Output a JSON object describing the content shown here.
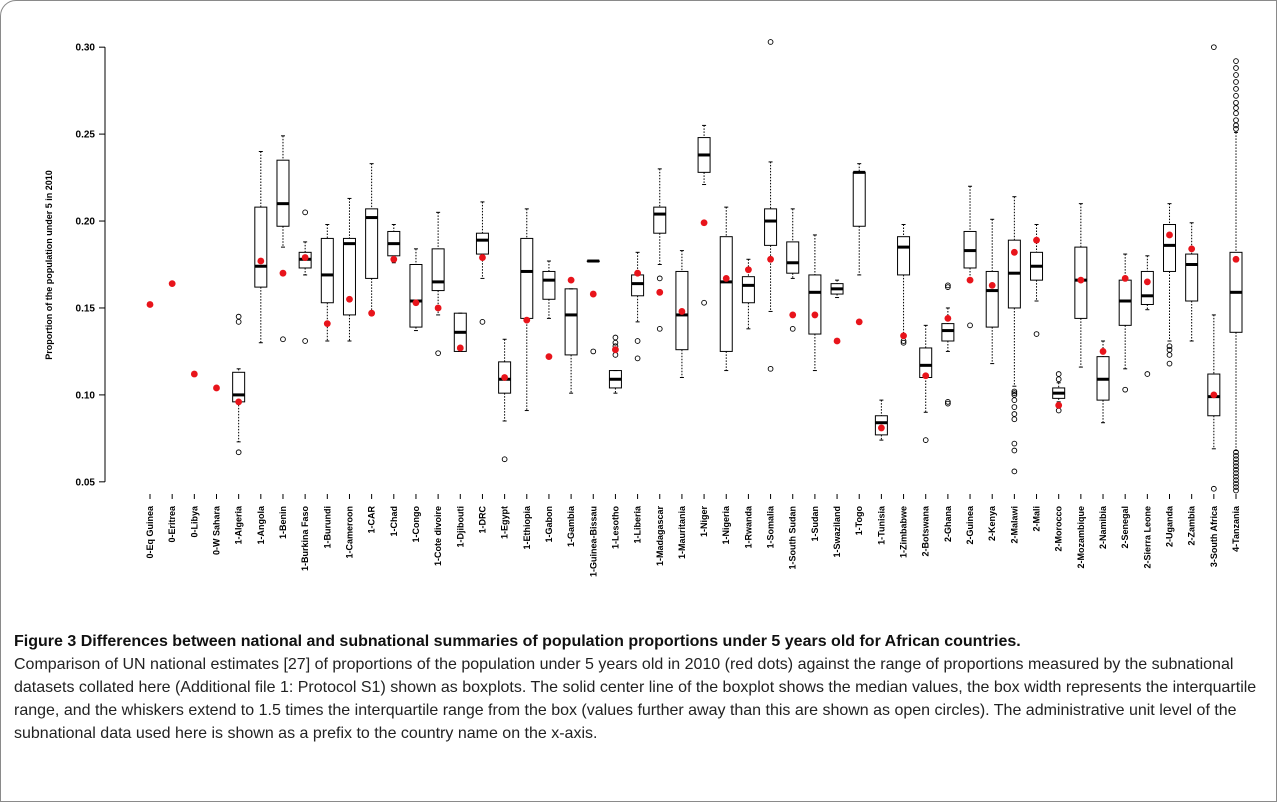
{
  "chart_data": {
    "type": "boxplot",
    "y_label": "Proportion of the population under 5 in 2010",
    "ylim": [
      0.043,
      0.307
    ],
    "yticks": [
      0.05,
      {
        "value": 0.1,
        "label": "0.10"
      },
      0.15,
      {
        "value": 0.2,
        "label": "0.20"
      },
      0.25,
      {
        "value": 0.3,
        "label": "0.30"
      }
    ],
    "box_color": "#000000",
    "national_color": "#e8141b",
    "categories": [
      "0-Eq Guinea",
      "0-Eritrea",
      "0-Libya",
      "0-W Sahara",
      "1-Algeria",
      "1-Angola",
      "1-Benin",
      "1-Burkina Faso",
      "1-Burundi",
      "1-Cameroon",
      "1-CAR",
      "1-Chad",
      "1-Congo",
      "1-Cote divoire",
      "1-Djibouti",
      "1-DRC",
      "1-Egypt",
      "1-Ethiopia",
      "1-Gabon",
      "1-Gambia",
      "1-Guinea-Bissau",
      "1-Lesotho",
      "1-Liberia",
      "1-Madagascar",
      "1-Mauritania",
      "1-Niger",
      "1-Nigeria",
      "1-Rwanda",
      "1-Somalia",
      "1-South Sudan",
      "1-Sudan",
      "1-Swaziland",
      "1-Togo",
      "1-Tunisia",
      "1-Zimbabwe",
      "2-Botswana",
      "2-Ghana",
      "2-Guinea",
      "2-Kenya",
      "2-Malawi",
      "2-Mali",
      "2-Morocco",
      "2-Mozambique",
      "2-Namibia",
      "2-Senegal",
      "2-Sierra Leone",
      "2-Uganda",
      "2-Zambia",
      "3-South Africa",
      "4-Tanzania"
    ],
    "national": [
      0.152,
      0.164,
      0.112,
      0.104,
      0.096,
      0.177,
      0.17,
      0.179,
      0.141,
      0.155,
      0.147,
      0.178,
      0.153,
      0.15,
      0.127,
      0.179,
      0.11,
      0.143,
      0.122,
      0.166,
      0.158,
      0.126,
      0.17,
      0.159,
      0.148,
      0.199,
      0.167,
      0.172,
      0.178,
      0.146,
      0.146,
      0.131,
      0.142,
      0.081,
      0.134,
      0.111,
      0.144,
      0.166,
      0.163,
      0.182,
      0.189,
      0.094,
      0.166,
      0.125,
      0.167,
      0.165,
      0.192,
      0.184,
      0.1,
      0.178
    ],
    "boxes": [
      null,
      null,
      null,
      null,
      {
        "low": 0.073,
        "q1": 0.096,
        "median": 0.1,
        "q3": 0.113,
        "high": 0.115,
        "outliers": [
          0.145,
          0.142,
          0.067
        ]
      },
      {
        "low": 0.13,
        "q1": 0.162,
        "median": 0.174,
        "q3": 0.208,
        "high": 0.24,
        "outliers": []
      },
      {
        "low": 0.185,
        "q1": 0.197,
        "median": 0.21,
        "q3": 0.235,
        "high": 0.249,
        "outliers": [
          0.132
        ]
      },
      {
        "low": 0.169,
        "q1": 0.173,
        "median": 0.178,
        "q3": 0.182,
        "high": 0.188,
        "outliers": [
          0.205,
          0.131
        ]
      },
      {
        "low": 0.131,
        "q1": 0.153,
        "median": 0.169,
        "q3": 0.19,
        "high": 0.198,
        "outliers": []
      },
      {
        "low": 0.131,
        "q1": 0.146,
        "median": 0.187,
        "q3": 0.19,
        "high": 0.213,
        "outliers": []
      },
      {
        "low": 0.148,
        "q1": 0.167,
        "median": 0.202,
        "q3": 0.207,
        "high": 0.233,
        "outliers": []
      },
      {
        "low": 0.176,
        "q1": 0.18,
        "median": 0.187,
        "q3": 0.194,
        "high": 0.198,
        "outliers": []
      },
      {
        "low": 0.137,
        "q1": 0.139,
        "median": 0.154,
        "q3": 0.175,
        "high": 0.184,
        "outliers": []
      },
      {
        "low": 0.146,
        "q1": 0.16,
        "median": 0.165,
        "q3": 0.184,
        "high": 0.205,
        "outliers": [
          0.124
        ]
      },
      {
        "low": 0.125,
        "q1": 0.125,
        "median": 0.136,
        "q3": 0.147,
        "high": 0.147,
        "outliers": []
      },
      {
        "low": 0.167,
        "q1": 0.181,
        "median": 0.189,
        "q3": 0.193,
        "high": 0.211,
        "outliers": [
          0.142
        ]
      },
      {
        "low": 0.085,
        "q1": 0.101,
        "median": 0.109,
        "q3": 0.119,
        "high": 0.132,
        "outliers": [
          0.063
        ]
      },
      {
        "low": 0.091,
        "q1": 0.144,
        "median": 0.171,
        "q3": 0.19,
        "high": 0.207,
        "outliers": []
      },
      {
        "low": 0.144,
        "q1": 0.155,
        "median": 0.166,
        "q3": 0.171,
        "high": 0.177,
        "outliers": []
      },
      {
        "low": 0.101,
        "q1": 0.123,
        "median": 0.146,
        "q3": 0.161,
        "high": 0.161,
        "outliers": []
      },
      {
        "low": 0.177,
        "q1": 0.177,
        "median": 0.177,
        "q3": 0.177,
        "high": 0.177,
        "outliers": [
          0.125
        ]
      },
      {
        "low": 0.101,
        "q1": 0.104,
        "median": 0.109,
        "q3": 0.114,
        "high": 0.114,
        "outliers": [
          0.133,
          0.13,
          0.128,
          0.123
        ]
      },
      {
        "low": 0.142,
        "q1": 0.157,
        "median": 0.164,
        "q3": 0.169,
        "high": 0.182,
        "outliers": [
          0.131,
          0.121
        ]
      },
      {
        "low": 0.175,
        "q1": 0.193,
        "median": 0.204,
        "q3": 0.208,
        "high": 0.23,
        "outliers": [
          0.167,
          0.138
        ]
      },
      {
        "low": 0.11,
        "q1": 0.126,
        "median": 0.146,
        "q3": 0.171,
        "high": 0.183,
        "outliers": []
      },
      {
        "low": 0.221,
        "q1": 0.228,
        "median": 0.238,
        "q3": 0.248,
        "high": 0.255,
        "outliers": [
          0.153
        ]
      },
      {
        "low": 0.114,
        "q1": 0.125,
        "median": 0.165,
        "q3": 0.191,
        "high": 0.208,
        "outliers": []
      },
      {
        "low": 0.138,
        "q1": 0.153,
        "median": 0.163,
        "q3": 0.168,
        "high": 0.178,
        "outliers": []
      },
      {
        "low": 0.148,
        "q1": 0.186,
        "median": 0.2,
        "q3": 0.207,
        "high": 0.234,
        "outliers": [
          0.303,
          0.115
        ]
      },
      {
        "low": 0.167,
        "q1": 0.17,
        "median": 0.176,
        "q3": 0.188,
        "high": 0.207,
        "outliers": [
          0.138
        ]
      },
      {
        "low": 0.114,
        "q1": 0.135,
        "median": 0.159,
        "q3": 0.169,
        "high": 0.192,
        "outliers": []
      },
      {
        "low": 0.156,
        "q1": 0.158,
        "median": 0.161,
        "q3": 0.164,
        "high": 0.166,
        "outliers": []
      },
      {
        "low": 0.169,
        "q1": 0.197,
        "median": 0.228,
        "q3": 0.228,
        "high": 0.233,
        "outliers": []
      },
      {
        "low": 0.074,
        "q1": 0.077,
        "median": 0.084,
        "q3": 0.088,
        "high": 0.097,
        "outliers": []
      },
      {
        "low": 0.134,
        "q1": 0.169,
        "median": 0.185,
        "q3": 0.191,
        "high": 0.198,
        "outliers": [
          0.131,
          0.13
        ]
      },
      {
        "low": 0.09,
        "q1": 0.11,
        "median": 0.117,
        "q3": 0.127,
        "high": 0.14,
        "outliers": [
          0.074
        ]
      },
      {
        "low": 0.125,
        "q1": 0.131,
        "median": 0.137,
        "q3": 0.141,
        "high": 0.15,
        "outliers": [
          0.163,
          0.162,
          0.096,
          0.095
        ]
      },
      {
        "low": 0.167,
        "q1": 0.173,
        "median": 0.183,
        "q3": 0.194,
        "high": 0.22,
        "outliers": [
          0.14
        ]
      },
      {
        "low": 0.118,
        "q1": 0.139,
        "median": 0.16,
        "q3": 0.171,
        "high": 0.201,
        "outliers": []
      },
      {
        "low": 0.105,
        "q1": 0.15,
        "median": 0.17,
        "q3": 0.189,
        "high": 0.214,
        "outliers": [
          0.102,
          0.101,
          0.1,
          0.097,
          0.093,
          0.089,
          0.086,
          0.072,
          0.068,
          0.056
        ]
      },
      {
        "low": 0.154,
        "q1": 0.166,
        "median": 0.174,
        "q3": 0.182,
        "high": 0.198,
        "outliers": [
          0.135
        ]
      },
      {
        "low": 0.096,
        "q1": 0.098,
        "median": 0.101,
        "q3": 0.104,
        "high": 0.107,
        "outliers": [
          0.112,
          0.109,
          0.091
        ]
      },
      {
        "low": 0.116,
        "q1": 0.144,
        "median": 0.166,
        "q3": 0.185,
        "high": 0.21,
        "outliers": []
      },
      {
        "low": 0.084,
        "q1": 0.097,
        "median": 0.109,
        "q3": 0.122,
        "high": 0.131,
        "outliers": []
      },
      {
        "low": 0.115,
        "q1": 0.14,
        "median": 0.154,
        "q3": 0.166,
        "high": 0.181,
        "outliers": [
          0.103
        ]
      },
      {
        "low": 0.149,
        "q1": 0.152,
        "median": 0.157,
        "q3": 0.171,
        "high": 0.18,
        "outliers": [
          0.112
        ]
      },
      {
        "low": 0.131,
        "q1": 0.171,
        "median": 0.186,
        "q3": 0.198,
        "high": 0.21,
        "outliers": [
          0.128,
          0.126,
          0.123,
          0.118
        ]
      },
      {
        "low": 0.131,
        "q1": 0.154,
        "median": 0.175,
        "q3": 0.181,
        "high": 0.199,
        "outliers": []
      },
      {
        "low": 0.069,
        "q1": 0.088,
        "median": 0.099,
        "q3": 0.112,
        "high": 0.146,
        "outliers": [
          0.3,
          0.046
        ]
      },
      {
        "low": 0.068,
        "q1": 0.136,
        "median": 0.159,
        "q3": 0.182,
        "high": 0.251,
        "outliers": [
          0.292,
          0.288,
          0.284,
          0.28,
          0.276,
          0.272,
          0.268,
          0.265,
          0.262,
          0.258,
          0.255,
          0.253,
          0.067,
          0.065,
          0.063,
          0.061,
          0.059,
          0.057,
          0.055,
          0.053,
          0.051,
          0.049,
          0.047,
          0.045
        ]
      }
    ]
  },
  "caption": {
    "label": "Figure 3",
    "title": "Differences between national and subnational summaries of population proportions under 5 years old for African countries.",
    "text": "Comparison of UN national estimates [27] of proportions of the population under 5 years old in 2010 (red dots) against the range of proportions measured by the subnational datasets collated here (Additional file 1: Protocol S1) shown as boxplots. The solid center line of the boxplot shows the median values, the box width represents the interquartile range, and the whiskers extend to 1.5 times the interquartile range from the box (values further away than this are shown as open circles). The administrative unit level of the subnational data used here is shown as a prefix to the country name on the x-axis."
  }
}
